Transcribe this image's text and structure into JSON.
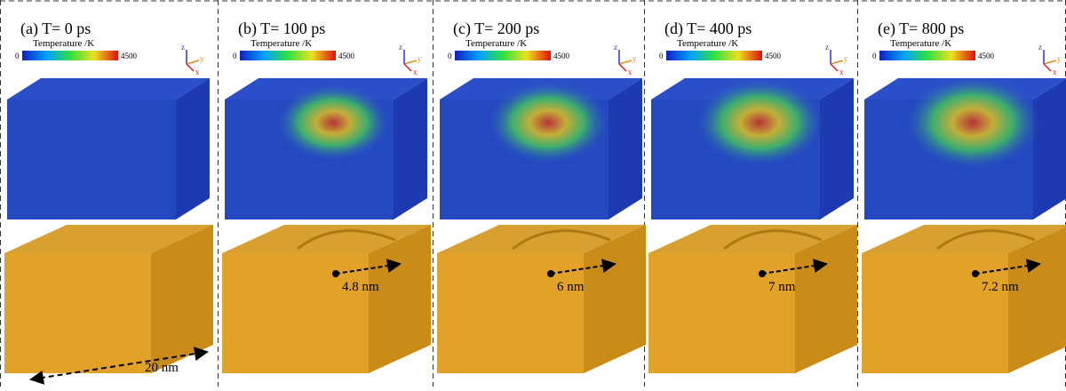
{
  "panels": [
    {
      "label": "(a) T= 0 ps",
      "colorbar": {
        "title": "Temperature /K",
        "min": 0,
        "max": 4500
      },
      "axes": [
        "z",
        "y",
        "x"
      ],
      "annotation": "20 nm"
    },
    {
      "label": "(b) T= 100 ps",
      "colorbar": {
        "title": "Temperature /K",
        "min": 0,
        "max": 4500
      },
      "axes": [
        "z",
        "y",
        "x"
      ],
      "annotation": "4.8 nm"
    },
    {
      "label": "(c) T= 200 ps",
      "colorbar": {
        "title": "Temperature /K",
        "min": 0,
        "max": 4500
      },
      "axes": [
        "z",
        "y",
        "x"
      ],
      "annotation": "6 nm"
    },
    {
      "label": "(d) T= 400 ps",
      "colorbar": {
        "title": "Temperature /K",
        "min": 0,
        "max": 4500
      },
      "axes": [
        "z",
        "y",
        "x"
      ],
      "annotation": "7 nm"
    },
    {
      "label": "(e) T= 800 ps",
      "colorbar": {
        "title": "Temperature /K",
        "min": 0,
        "max": 4500
      },
      "axes": [
        "z",
        "y",
        "x"
      ],
      "annotation": "7.2 nm"
    }
  ]
}
